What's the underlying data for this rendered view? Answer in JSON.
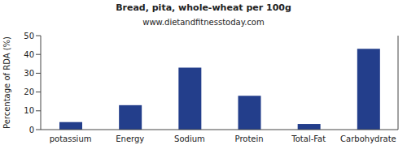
{
  "chart_data": {
    "type": "bar",
    "title": "Bread, pita, whole-wheat per 100g",
    "subtitle": "www.dietandfitnesstoday.com",
    "y_label": "Percentage of RDA (%)",
    "categories": [
      "potassium",
      "Energy",
      "Sodium",
      "Protein",
      "Total-Fat",
      "Carbohydrate"
    ],
    "values": [
      4,
      13,
      33,
      18,
      3,
      43
    ],
    "color": "#233e8b",
    "ylim": [
      0,
      50
    ],
    "yticks": [
      0,
      10,
      20,
      30,
      40,
      50
    ],
    "grid": false
  }
}
